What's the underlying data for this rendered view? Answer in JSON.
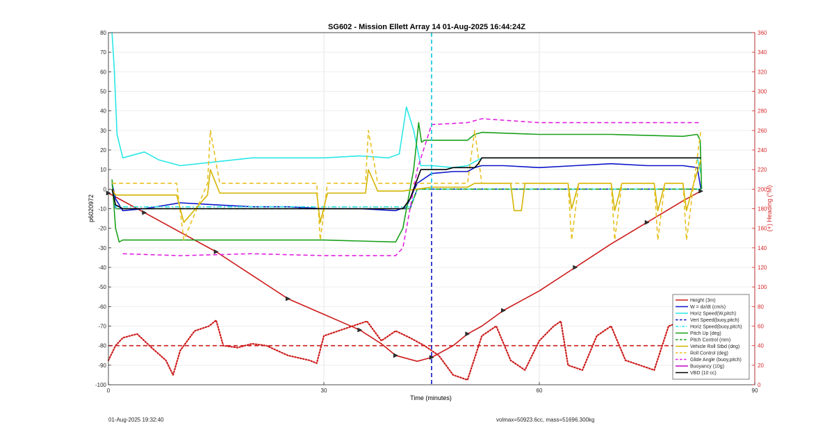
{
  "chart_data": {
    "type": "line",
    "title": "SG602 - Mission Ellett Array 14 01-Aug-2025 16:44:24Z",
    "xlabel": "Time (minutes)",
    "ylabel_left": "p6020972",
    "ylabel_right": "(+) Heading (°M)",
    "xlim": [
      0,
      90
    ],
    "ylim_left": [
      -100,
      80
    ],
    "ylim_right": [
      0,
      360
    ],
    "x_ticks": [
      0,
      30,
      60,
      90
    ],
    "y_ticks_left": [
      -100,
      -90,
      -80,
      -70,
      -60,
      -50,
      -40,
      -30,
      -20,
      -10,
      0,
      10,
      20,
      30,
      40,
      50,
      60,
      70,
      80
    ],
    "y_ticks_right": [
      0,
      20,
      40,
      60,
      80,
      100,
      120,
      140,
      160,
      180,
      200,
      220,
      240,
      260,
      280,
      300,
      320,
      340,
      360
    ],
    "grid": true,
    "legend_position": "bottom-right",
    "apogee_time_min": 45,
    "heading_target_deg": 40,
    "series": [
      {
        "name": "Height (3m)",
        "color": "#cc1a1a",
        "style": "solid",
        "axis": "left",
        "x": [
          0,
          5,
          10,
          15,
          20,
          25,
          30,
          35,
          38,
          40,
          43,
          45,
          48,
          50,
          52,
          55,
          60,
          65,
          70,
          75,
          80,
          82.5
        ],
        "y": [
          -2,
          -12,
          -22,
          -32,
          -44,
          -56,
          -64,
          -72,
          -79,
          -85,
          -88,
          -86,
          -80,
          -74,
          -70,
          -62,
          -52,
          -40,
          -28,
          -17,
          -6,
          -1
        ]
      },
      {
        "name": "W = dz/dt (cm/s)",
        "color": "#0a14c8",
        "style": "solid",
        "axis": "left",
        "x": [
          0.5,
          1,
          2,
          5,
          10,
          15,
          20,
          25,
          30,
          35,
          40,
          41.5,
          43,
          45,
          48,
          50,
          51,
          52,
          55,
          60,
          65,
          70,
          75,
          80,
          82,
          82.5
        ],
        "y": [
          3,
          -5,
          -11,
          -10,
          -7,
          -8,
          -9,
          -9,
          -10,
          -10,
          -11,
          -9,
          3,
          8,
          9,
          9,
          11,
          12,
          12,
          11,
          12,
          13,
          12,
          12,
          11,
          0
        ]
      },
      {
        "name": "Horiz Speed(W,pitch)",
        "color": "#2ae6e6",
        "style": "solid",
        "axis": "left",
        "x": [
          0.5,
          0.8,
          1.2,
          2,
          5,
          7,
          10,
          15,
          20,
          25,
          30,
          35,
          39,
          40.5,
          41.5,
          42.5,
          43.5,
          45,
          48,
          50,
          52,
          55,
          60,
          65,
          70,
          75,
          80,
          82,
          82.5
        ],
        "y": [
          80,
          62,
          28,
          16,
          19,
          15,
          12,
          14,
          16,
          16,
          16,
          17,
          16,
          18,
          42,
          30,
          12,
          12,
          11,
          12,
          16,
          16,
          16,
          16,
          16,
          16,
          16,
          16,
          8
        ]
      },
      {
        "name": "Vert Speed(buoy,pitch)",
        "color": "#0a14c8",
        "style": "dashed",
        "axis": "left",
        "x": [
          0.5,
          1,
          2,
          40,
          42,
          43,
          45,
          82.5
        ],
        "y": [
          3,
          -10,
          -10,
          -10,
          -10,
          0,
          0,
          0
        ]
      },
      {
        "name": "Horiz Speed(buoy,pitch)",
        "color": "#2ae6e6",
        "style": "dash-dot",
        "axis": "left",
        "x": [
          0.5,
          1,
          2,
          40,
          42,
          43,
          45,
          82.5
        ],
        "y": [
          3,
          -9,
          -9,
          -9,
          -9,
          0,
          0,
          0
        ]
      },
      {
        "name": "Pitch Up (deg)",
        "color": "#1aa01a",
        "style": "solid",
        "axis": "left",
        "x": [
          0.5,
          1,
          1.5,
          2,
          10,
          20,
          30,
          40,
          41,
          42.5,
          43.2,
          43.6,
          44,
          45,
          50,
          51,
          52,
          60,
          70,
          80,
          82,
          82.4,
          82.6
        ],
        "y": [
          5,
          -20,
          -27,
          -26,
          -26,
          -26,
          -26,
          -27,
          -20,
          10,
          34,
          24,
          25,
          25,
          25,
          28,
          29,
          28,
          28,
          27,
          28,
          25,
          0
        ]
      },
      {
        "name": "Pitch Control (mm)",
        "color": "#1aa01a",
        "style": "dashed",
        "axis": "left",
        "x": [
          1,
          2,
          40,
          42,
          43,
          45,
          82,
          82.5
        ],
        "y": [
          -10,
          -10,
          -10,
          -10,
          0,
          0,
          0,
          0
        ]
      },
      {
        "name": "Vehicle Roll Stbd (deg)",
        "color": "#d4b400",
        "style": "solid",
        "axis": "left",
        "x": [
          0.5,
          1,
          5,
          9.5,
          10.5,
          13.8,
          14.2,
          15.5,
          29,
          29.5,
          30.5,
          35.8,
          36.2,
          37.5,
          41,
          43,
          45,
          50,
          51,
          52,
          56,
          56.5,
          57.5,
          58,
          60,
          64,
          64.5,
          65.5,
          70,
          70.5,
          71.5,
          76,
          76.5,
          77.5,
          80,
          80.5,
          81.5,
          82.5
        ],
        "y": [
          0,
          -3,
          -3,
          -3,
          -17,
          -3,
          10,
          -2,
          -2,
          -17,
          -2,
          -2,
          10,
          -1,
          -1,
          0,
          1,
          1,
          3,
          3,
          3,
          -11,
          -11,
          3,
          3,
          3,
          -10,
          3,
          3,
          -11,
          3,
          3,
          -11,
          3,
          3,
          -11,
          3,
          15
        ]
      },
      {
        "name": "Roll Control (deg)",
        "color": "#e8c020",
        "style": "dashed",
        "axis": "left",
        "x": [
          0.5,
          1,
          9.5,
          10.5,
          13.8,
          14.2,
          15.5,
          29,
          29.5,
          30.5,
          35.8,
          36.2,
          37.5,
          41,
          43,
          50,
          51,
          52,
          60,
          64,
          64.5,
          65.5,
          70,
          70.5,
          71.5,
          76,
          76.5,
          77.5,
          80,
          80.5,
          81.5,
          82.5
        ],
        "y": [
          3,
          3,
          3,
          -26,
          3,
          30,
          3,
          3,
          -26,
          3,
          3,
          30,
          3,
          3,
          3,
          3,
          30,
          3,
          3,
          3,
          -26,
          3,
          3,
          -26,
          3,
          3,
          -26,
          3,
          3,
          -26,
          3,
          30
        ]
      },
      {
        "name": "Glide Angle (buoy,pitch)",
        "color": "#e020e0",
        "style": "dashed",
        "axis": "left",
        "x": [
          2,
          10,
          20,
          30,
          40,
          41,
          43,
          45,
          50,
          52,
          60,
          70,
          80,
          82.5
        ],
        "y": [
          -33,
          -34,
          -33,
          -34,
          -34,
          -30,
          10,
          33,
          34,
          36,
          34,
          34,
          34,
          34
        ]
      },
      {
        "name": "Buoyancy (10g)",
        "color": "#c000c0",
        "style": "solid",
        "axis": "left",
        "x": [],
        "y": []
      },
      {
        "name": "VBD (10 cc)",
        "color": "#000000",
        "style": "solid",
        "axis": "left",
        "x": [
          0.5,
          1,
          2,
          40,
          41,
          42,
          43.5,
          44.5,
          47,
          48,
          51,
          51.5,
          52,
          82,
          82.5
        ],
        "y": [
          0,
          -8,
          -10,
          -10,
          -10,
          -5,
          10,
          10,
          10,
          11,
          11,
          13,
          16,
          16,
          16
        ]
      },
      {
        "name": "Heading",
        "color": "#cc1a1a",
        "style": "dotted",
        "axis": "right",
        "x": [
          0,
          1,
          2,
          4,
          6,
          8,
          9,
          10,
          12,
          14,
          15,
          16,
          18,
          20,
          22,
          25,
          28,
          29,
          30,
          32,
          34,
          36,
          38,
          40,
          42,
          44,
          46,
          48,
          50,
          52,
          54,
          56,
          58,
          60,
          62,
          63,
          64,
          66,
          68,
          70,
          72,
          74,
          76,
          78,
          80,
          81,
          82
        ],
        "y": [
          25,
          40,
          48,
          52,
          38,
          25,
          10,
          35,
          55,
          60,
          66,
          40,
          38,
          42,
          40,
          30,
          25,
          22,
          50,
          55,
          60,
          65,
          45,
          55,
          48,
          40,
          30,
          10,
          5,
          50,
          60,
          25,
          15,
          45,
          60,
          65,
          20,
          15,
          50,
          60,
          25,
          20,
          15,
          60,
          65,
          15,
          40
        ]
      },
      {
        "name": "Heading target",
        "color": "#cc1a1a",
        "style": "dashed",
        "axis": "right",
        "x": [
          0,
          82.5
        ],
        "y": [
          40,
          40
        ]
      }
    ]
  },
  "footer": {
    "date": "01-Aug-2025 19:32:40",
    "volmax": "volmax=50923.6cc, mass=51696.300kg"
  }
}
